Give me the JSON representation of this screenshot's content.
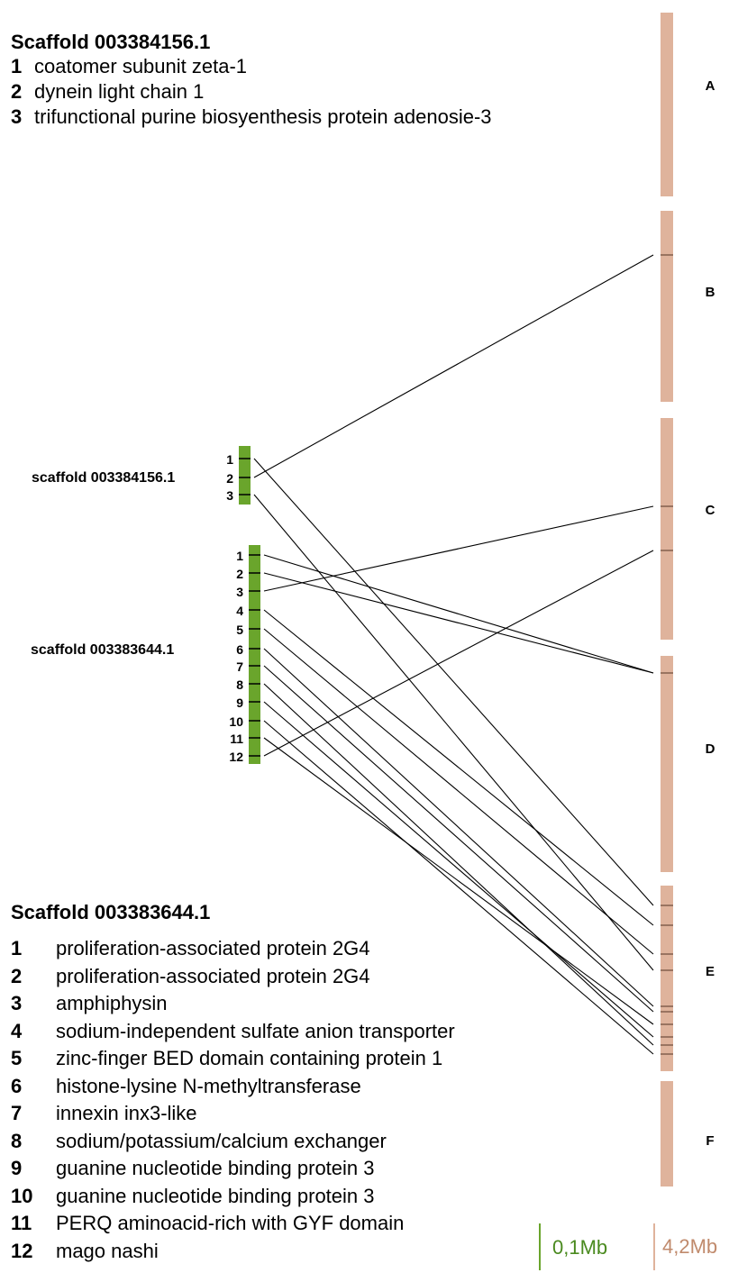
{
  "legend1": {
    "title": "Scaffold 003384156.1",
    "items": [
      {
        "num": "1",
        "text": "coatomer subunit zeta-1"
      },
      {
        "num": "2",
        "text": "dynein light chain 1"
      },
      {
        "num": "3",
        "text": "trifunctional purine biosyenthesis protein adenosie-3"
      }
    ]
  },
  "legend2": {
    "title": "Scaffold 003383644.1",
    "items": [
      {
        "num": "1",
        "text": "proliferation-associated protein 2G4"
      },
      {
        "num": "2",
        "text": "proliferation-associated protein 2G4"
      },
      {
        "num": "3",
        "text": "amphiphysin"
      },
      {
        "num": "4",
        "text": "sodium-independent sulfate anion transporter"
      },
      {
        "num": "5",
        "text": "zinc-finger BED domain containing protein 1"
      },
      {
        "num": "6",
        "text": "histone-lysine N-methyltransferase"
      },
      {
        "num": "7",
        "text": "innexin inx3-like"
      },
      {
        "num": "8",
        "text": "sodium/potassium/calcium exchanger"
      },
      {
        "num": "9",
        "text": "guanine nucleotide binding protein 3"
      },
      {
        "num": "10",
        "text": "guanine nucleotide binding protein 3"
      },
      {
        "num": "11",
        "text": "PERQ aminoacid-rich with GYF domain"
      },
      {
        "num": "12",
        "text": "mago nashi"
      }
    ]
  },
  "scaffolds": [
    {
      "id": "s1",
      "label": "scaffold 003384156.1",
      "gene_labels": [
        "1",
        "2",
        "3"
      ]
    },
    {
      "id": "s2",
      "label": "scaffold 003383644.1",
      "gene_labels": [
        "1",
        "2",
        "3",
        "4",
        "5",
        "6",
        "7",
        "8",
        "9",
        "10",
        "11",
        "12"
      ]
    }
  ],
  "chromosomes": [
    "A",
    "B",
    "C",
    "D",
    "E",
    "F"
  ],
  "links": [
    {
      "scaffold": "s1",
      "gene": "1",
      "chromosome": "E"
    },
    {
      "scaffold": "s1",
      "gene": "2",
      "chromosome": "B"
    },
    {
      "scaffold": "s1",
      "gene": "3",
      "chromosome": "E"
    },
    {
      "scaffold": "s2",
      "gene": "1",
      "chromosome": "D"
    },
    {
      "scaffold": "s2",
      "gene": "2",
      "chromosome": "D"
    },
    {
      "scaffold": "s2",
      "gene": "3",
      "chromosome": "C"
    },
    {
      "scaffold": "s2",
      "gene": "4",
      "chromosome": "E"
    },
    {
      "scaffold": "s2",
      "gene": "5",
      "chromosome": "E"
    },
    {
      "scaffold": "s2",
      "gene": "6",
      "chromosome": "E"
    },
    {
      "scaffold": "s2",
      "gene": "7",
      "chromosome": "E"
    },
    {
      "scaffold": "s2",
      "gene": "8",
      "chromosome": "E"
    },
    {
      "scaffold": "s2",
      "gene": "9",
      "chromosome": "E"
    },
    {
      "scaffold": "s2",
      "gene": "10",
      "chromosome": "E"
    },
    {
      "scaffold": "s2",
      "gene": "11",
      "chromosome": "E"
    },
    {
      "scaffold": "s2",
      "gene": "12",
      "chromosome": "C"
    }
  ],
  "scale": {
    "scaffold_label": "0,1Mb",
    "chromosome_label": "4,2Mb"
  },
  "colors": {
    "scaffold": "#6aa52c",
    "chromosome": "#dfb39c",
    "scaffold_scale_text": "#4a8a1f",
    "chromosome_scale_text": "#c08a6c",
    "link_line": "#000000"
  }
}
